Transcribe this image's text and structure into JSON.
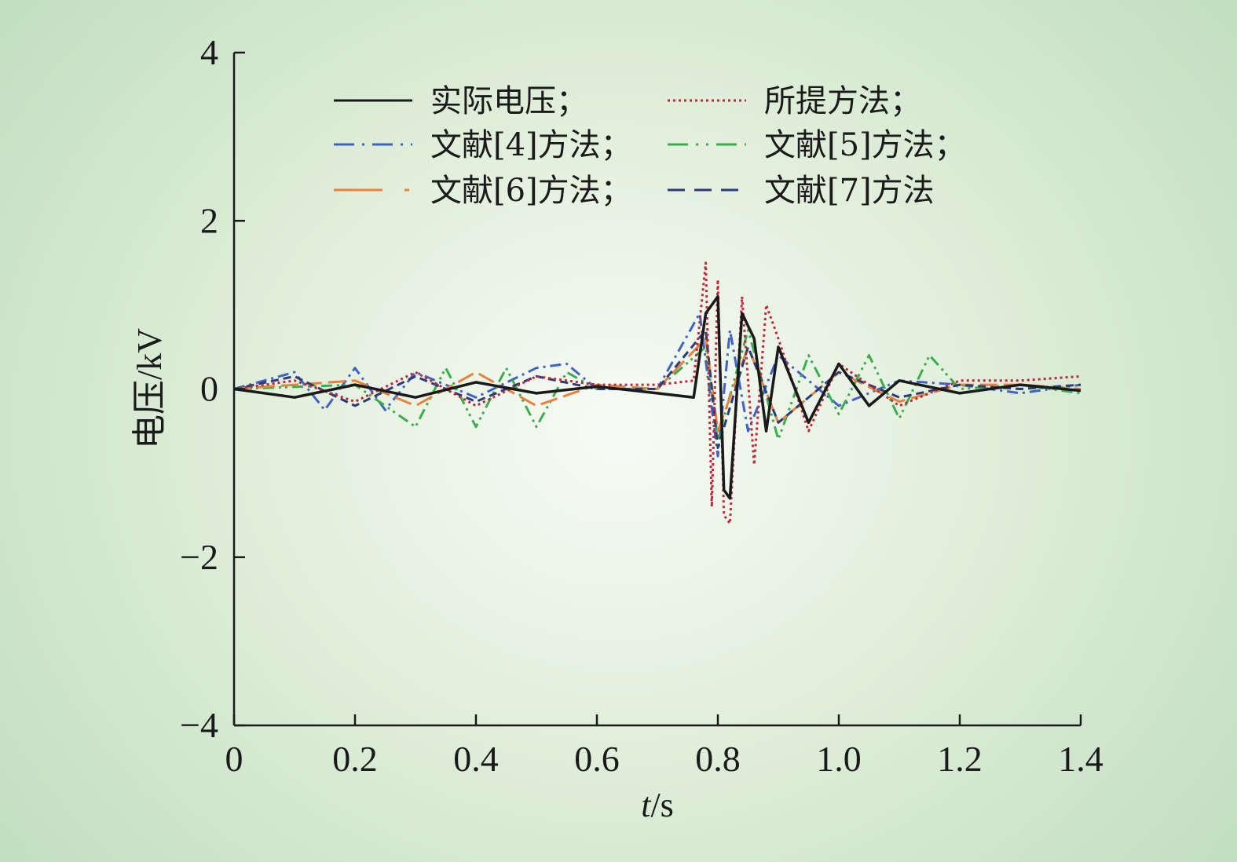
{
  "chart_data": {
    "type": "line",
    "title": "",
    "xlabel_var": "t",
    "xlabel_unit": "/s",
    "ylabel": "电压/kV",
    "xlim": [
      0,
      1.4
    ],
    "ylim": [
      -4,
      4
    ],
    "xticks": [
      0,
      0.2,
      0.4,
      0.6,
      0.8,
      1.0,
      1.2,
      1.4
    ],
    "xtick_labels": [
      "0",
      "0.2",
      "0.4",
      "0.6",
      "0.8",
      "1.0",
      "1.2",
      "1.4"
    ],
    "yticks": [
      4,
      2,
      0,
      -2,
      -4
    ],
    "ytick_labels": [
      "4",
      "2",
      "0",
      "−2",
      "−4"
    ],
    "grid": false,
    "legend_position": "top",
    "series": [
      {
        "name": "实际电压；",
        "color": "#1a1a1a",
        "dash": "solid",
        "x": [
          0,
          0.1,
          0.2,
          0.3,
          0.4,
          0.5,
          0.6,
          0.7,
          0.76,
          0.78,
          0.8,
          0.81,
          0.82,
          0.84,
          0.86,
          0.88,
          0.9,
          0.95,
          1.0,
          1.05,
          1.1,
          1.2,
          1.3,
          1.4
        ],
        "y": [
          0,
          -0.1,
          0.05,
          -0.1,
          0.08,
          -0.05,
          0.03,
          -0.05,
          -0.1,
          0.9,
          1.1,
          -1.2,
          -1.3,
          0.9,
          0.6,
          -0.5,
          0.5,
          -0.4,
          0.3,
          -0.2,
          0.1,
          -0.05,
          0.05,
          -0.02
        ]
      },
      {
        "name": "所提方法；",
        "color": "#c0283c",
        "dash": "dotted",
        "x": [
          0,
          0.1,
          0.2,
          0.3,
          0.4,
          0.5,
          0.6,
          0.7,
          0.76,
          0.78,
          0.79,
          0.8,
          0.81,
          0.82,
          0.84,
          0.86,
          0.88,
          0.9,
          0.95,
          1.0,
          1.1,
          1.2,
          1.3,
          1.4
        ],
        "y": [
          0,
          0.1,
          -0.15,
          0.2,
          -0.2,
          0.15,
          0.05,
          0.05,
          0.1,
          1.5,
          -1.4,
          1.3,
          -1.5,
          -1.6,
          1.1,
          -0.9,
          1.0,
          0.6,
          -0.5,
          0.3,
          -0.2,
          0.1,
          0.1,
          0.15
        ]
      },
      {
        "name": "文献[4]方法；",
        "color": "#3f62c4",
        "dash": "dash-dot",
        "x": [
          0,
          0.1,
          0.15,
          0.2,
          0.25,
          0.3,
          0.4,
          0.5,
          0.55,
          0.6,
          0.7,
          0.77,
          0.8,
          0.82,
          0.85,
          0.9,
          1.0,
          1.1,
          1.2,
          1.3,
          1.4
        ],
        "y": [
          0,
          0.2,
          -0.25,
          0.25,
          -0.25,
          0.2,
          -0.1,
          0.25,
          0.3,
          0,
          0,
          0.9,
          -0.8,
          0.7,
          -0.5,
          0.4,
          -0.2,
          0.1,
          0.05,
          -0.05,
          0.05
        ]
      },
      {
        "name": "文献[5]方法；",
        "color": "#3aae4c",
        "dash": "dash-dot-dot",
        "x": [
          0,
          0.2,
          0.3,
          0.35,
          0.4,
          0.45,
          0.5,
          0.55,
          0.6,
          0.7,
          0.78,
          0.8,
          0.85,
          0.9,
          0.95,
          1.0,
          1.05,
          1.1,
          1.15,
          1.2,
          1.3,
          1.4
        ],
        "y": [
          0,
          0.05,
          -0.45,
          0.25,
          -0.45,
          0.25,
          -0.45,
          0.2,
          0,
          0,
          0.5,
          -0.6,
          0.7,
          -0.6,
          0.4,
          -0.3,
          0.4,
          -0.35,
          0.4,
          0,
          0.05,
          -0.05
        ]
      },
      {
        "name": "文献[6]方法；",
        "color": "#e8823c",
        "dash": "long-dash",
        "x": [
          0,
          0.2,
          0.3,
          0.4,
          0.5,
          0.6,
          0.7,
          0.78,
          0.8,
          0.85,
          0.9,
          1.0,
          1.1,
          1.2,
          1.3,
          1.4
        ],
        "y": [
          0,
          0.1,
          -0.2,
          0.2,
          -0.2,
          0.05,
          0,
          0.6,
          -0.5,
          0.5,
          -0.4,
          0.2,
          -0.15,
          0.05,
          0.05,
          0
        ]
      },
      {
        "name": "文献[7]方法",
        "color": "#2c3c78",
        "dash": "dash",
        "x": [
          0,
          0.1,
          0.2,
          0.3,
          0.4,
          0.5,
          0.6,
          0.7,
          0.78,
          0.8,
          0.85,
          0.9,
          1.0,
          1.1,
          1.2,
          1.3,
          1.4
        ],
        "y": [
          0,
          0.15,
          -0.2,
          0.15,
          -0.15,
          0.15,
          0,
          0,
          0.7,
          -0.7,
          0.5,
          -0.4,
          0.2,
          -0.1,
          0.05,
          0,
          0.05
        ]
      }
    ]
  }
}
